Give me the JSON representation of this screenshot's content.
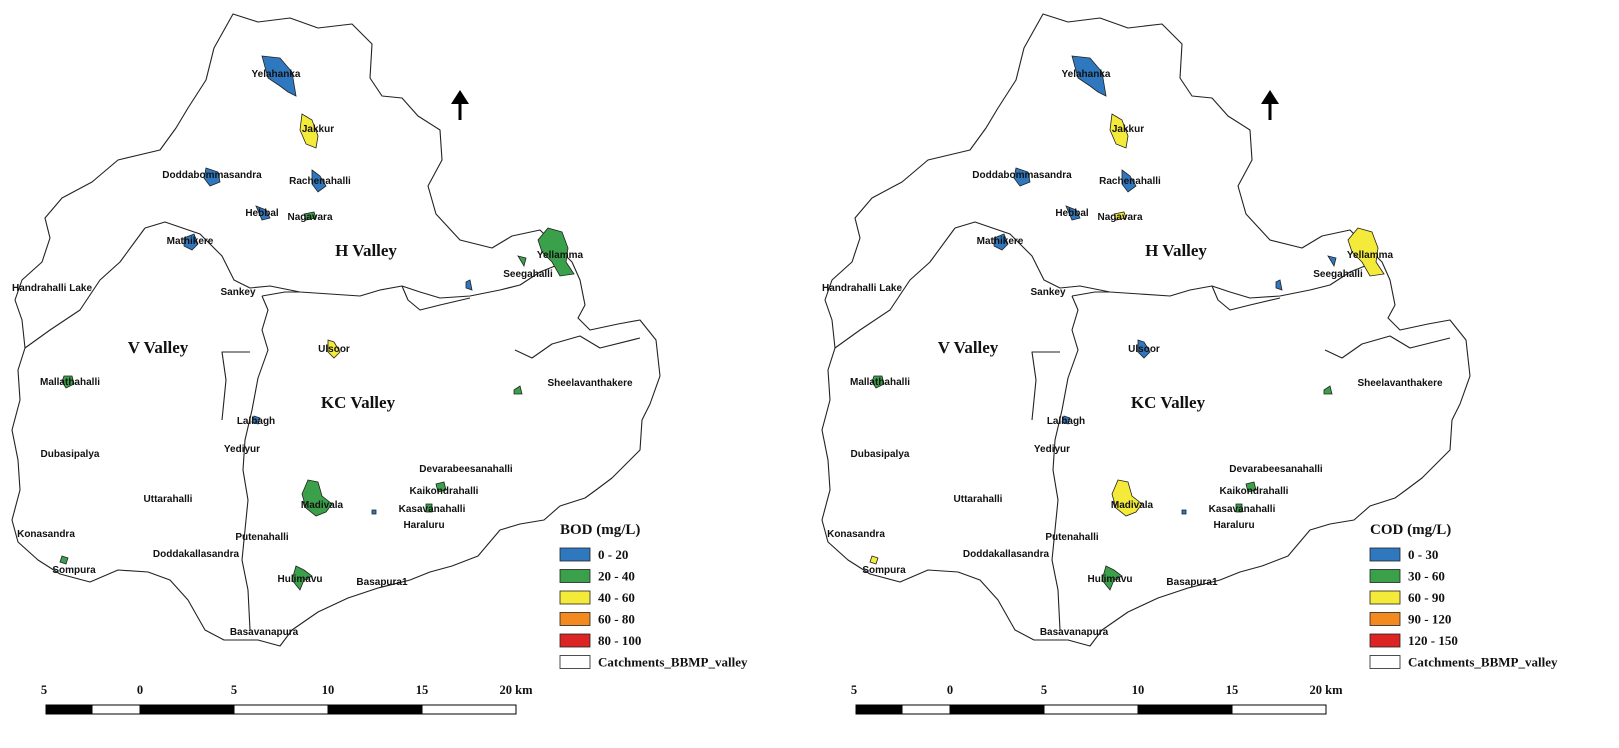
{
  "colors": {
    "class1": "#2f78c0",
    "class2": "#3aa14a",
    "class3": "#f3ea3a",
    "class4": "#f28a20",
    "class5": "#dd2424",
    "outline": "#222222"
  },
  "valleys": {
    "h": "H Valley",
    "v": "V Valley",
    "kc": "KC Valley"
  },
  "places": {
    "yelahanka": "Yelahanka",
    "jakkur": "Jakkur",
    "doddabommasandra": "Doddabommasandra",
    "rachenahalli": "Rachenahalli",
    "hebbal": "Hebbal",
    "nagavara": "Nagavara",
    "mathikere": "Mathikere",
    "yellamma": "Yellamma",
    "seegahalli": "Seegahalli",
    "handrahalli": "Handrahalli Lake",
    "sankey": "Sankey",
    "ulsoor": "Ulsoor",
    "mallathahalli": "Mallathahalli",
    "sheelavanthakere": "Sheelavanthakere",
    "lalbagh": "Lalbagh",
    "yediyur": "Yediyur",
    "dubasipalya": "Dubasipalya",
    "devarabeesanahalli": "Devarabeesanahalli",
    "kaikondrahalli": "Kaikondrahalli",
    "uttarahalli": "Uttarahalli",
    "madivala": "Madivala",
    "kasavanahalli": "Kasavanahalli",
    "haralluru": "Haraluru",
    "konasandra": "Konasandra",
    "putenahalli": "Putenahalli",
    "doddakallasandra": "Doddakallasandra",
    "sompura": "Sompura",
    "hulimavu": "Hulimavu",
    "basapura1": "Basapura1",
    "basavanapura": "Basavanapura"
  },
  "maps": [
    {
      "id": "bod",
      "legend_title": "BOD (mg/L)",
      "legend_items": [
        {
          "label": "0 - 20",
          "color": "#2f78c0"
        },
        {
          "label": "20 - 40",
          "color": "#3aa14a"
        },
        {
          "label": "40 - 60",
          "color": "#f3ea3a"
        },
        {
          "label": "60 - 80",
          "color": "#f28a20"
        },
        {
          "label": "80 - 100",
          "color": "#dd2424"
        },
        {
          "label": "Catchments_BBMP_valley",
          "color": "#ffffff"
        }
      ],
      "lake_classes": {
        "yelahanka": 1,
        "jakkur": 3,
        "doddabommasandra": 1,
        "rachenahalli": 1,
        "hebbal": 1,
        "nagavara": 2,
        "mathikere": 1,
        "yellamma": 2,
        "seegahalli": 2,
        "east_small": 1,
        "ulsoor": 3,
        "mallathahalli": 2,
        "sheelavanthakere": 2,
        "lalbagh": 1,
        "madivala": 2,
        "kaikondrahalli": 2,
        "kasavanahalli": 2,
        "sompura": 2,
        "hulimavu": 2,
        "dot": 1
      }
    },
    {
      "id": "cod",
      "legend_title": "COD (mg/L)",
      "legend_items": [
        {
          "label": "0 - 30",
          "color": "#2f78c0"
        },
        {
          "label": "30 - 60",
          "color": "#3aa14a"
        },
        {
          "label": "60 - 90",
          "color": "#f3ea3a"
        },
        {
          "label": "90 - 120",
          "color": "#f28a20"
        },
        {
          "label": "120 - 150",
          "color": "#dd2424"
        },
        {
          "label": "Catchments_BBMP_valley",
          "color": "#ffffff"
        }
      ],
      "lake_classes": {
        "yelahanka": 1,
        "jakkur": 3,
        "doddabommasandra": 1,
        "rachenahalli": 1,
        "hebbal": 1,
        "nagavara": 3,
        "mathikere": 1,
        "yellamma": 3,
        "seegahalli": 1,
        "east_small": 1,
        "ulsoor": 1,
        "mallathahalli": 2,
        "sheelavanthakere": 2,
        "lalbagh": 1,
        "madivala": 3,
        "kaikondrahalli": 2,
        "kasavanahalli": 2,
        "sompura": 3,
        "hulimavu": 2,
        "dot": 1
      }
    }
  ],
  "scale": {
    "ticks": [
      "5",
      "0",
      "5",
      "10",
      "15",
      "20 km"
    ]
  }
}
